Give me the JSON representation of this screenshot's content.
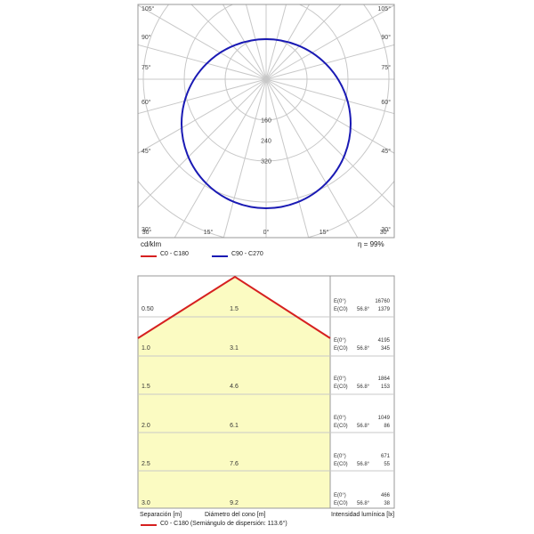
{
  "polar": {
    "angle_labels_left": [
      "105°",
      "90°",
      "75°",
      "60°",
      "45°",
      "30°"
    ],
    "angle_labels_right": [
      "105°",
      "90°",
      "75°",
      "60°",
      "45°",
      "30°"
    ],
    "bottom_labels": [
      "30°",
      "15°",
      "0°",
      "15°",
      "30°"
    ],
    "radial_labels": [
      "160",
      "240",
      "320"
    ],
    "unit_label": "cd/klm",
    "efficiency_label": "η = 99%",
    "legend": [
      {
        "label": "C0 - C180",
        "color": "#d62020"
      },
      {
        "label": "C90 - C270",
        "color": "#1a1ab4"
      }
    ]
  },
  "cone": {
    "rows": [
      {
        "separation": "0.50",
        "diameter": "1.5",
        "e0_label": "E(0°)",
        "e0": "16760",
        "ec0_label": "E(C0)",
        "angle": "56.8°",
        "ec0": "1379"
      },
      {
        "separation": "1.0",
        "diameter": "3.1",
        "e0_label": "E(0°)",
        "e0": "4195",
        "ec0_label": "E(C0)",
        "angle": "56.8°",
        "ec0": "345"
      },
      {
        "separation": "1.5",
        "diameter": "4.6",
        "e0_label": "E(0°)",
        "e0": "1864",
        "ec0_label": "E(C0)",
        "angle": "56.8°",
        "ec0": "153"
      },
      {
        "separation": "2.0",
        "diameter": "6.1",
        "e0_label": "E(0°)",
        "e0": "1049",
        "ec0_label": "E(C0)",
        "angle": "56.8°",
        "ec0": "86"
      },
      {
        "separation": "2.5",
        "diameter": "7.6",
        "e0_label": "E(0°)",
        "e0": "671",
        "ec0_label": "E(C0)",
        "angle": "56.8°",
        "ec0": "55"
      },
      {
        "separation": "3.0",
        "diameter": "9.2",
        "e0_label": "E(0°)",
        "e0": "466",
        "ec0_label": "E(C0)",
        "angle": "56.8°",
        "ec0": "38"
      }
    ],
    "col_separation": "Separación [m]",
    "col_diameter": "Diámetro del cono [m]",
    "col_intensity": "Intensidad lumínica [lx]",
    "legend_label": "C0 - C180 (Semiángulo de dispersión: 113.6°)",
    "line_color": "#d62020",
    "fill_color": "#fbfbc2"
  }
}
